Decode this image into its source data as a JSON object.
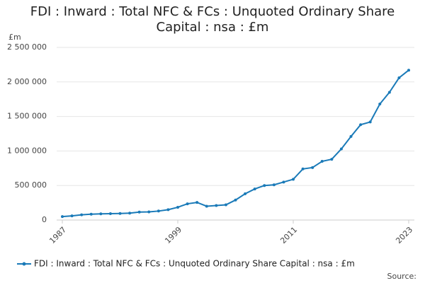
{
  "chart_data": {
    "type": "line",
    "title": "FDI : Inward : Total NFC & FCs : Unquoted Ordinary Share Capital : nsa : £m",
    "y_label": "£m",
    "source": "Source:",
    "x": [
      1987,
      1988,
      1989,
      1990,
      1991,
      1992,
      1993,
      1994,
      1995,
      1996,
      1997,
      1998,
      1999,
      2000,
      2001,
      2002,
      2003,
      2004,
      2005,
      2006,
      2007,
      2008,
      2009,
      2010,
      2011,
      2012,
      2013,
      2014,
      2015,
      2016,
      2017,
      2018,
      2019,
      2020,
      2021,
      2022,
      2023
    ],
    "series": [
      {
        "name": "FDI : Inward : Total NFC & FCs : Unquoted Ordinary Share Capital : nsa : £m",
        "color": "#1a7ab8",
        "values": [
          50000,
          60000,
          75000,
          85000,
          90000,
          92000,
          95000,
          100000,
          115000,
          118000,
          130000,
          150000,
          185000,
          235000,
          255000,
          200000,
          210000,
          220000,
          290000,
          380000,
          450000,
          500000,
          510000,
          550000,
          590000,
          740000,
          760000,
          850000,
          880000,
          1030000,
          1210000,
          1380000,
          1420000,
          1680000,
          1850000,
          2060000,
          2170000
        ]
      }
    ],
    "xlim": [
      1987,
      2023
    ],
    "xticks": [
      1987,
      1999,
      2011,
      2023
    ],
    "ylim": [
      0,
      2500000
    ],
    "yticks": [
      0,
      {
        "value": 500000,
        "label": "500 000"
      },
      {
        "value": 1000000,
        "label": "1 000 000"
      },
      {
        "value": 1500000,
        "label": "1 500 000"
      },
      {
        "value": 2000000,
        "label": "2 000 000"
      },
      {
        "value": 2500000,
        "label": "2 500 000"
      }
    ],
    "grid": true
  }
}
